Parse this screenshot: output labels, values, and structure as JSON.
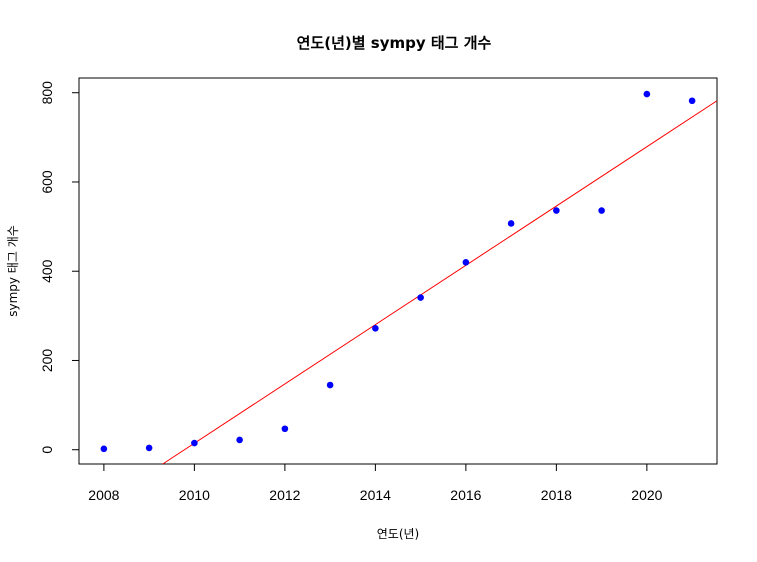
{
  "chart_data": {
    "type": "scatter",
    "title": "연도(년)별 sympy 태그 개수",
    "xlabel": "연도(년)",
    "ylabel": "sympy 태그 개수",
    "xlim": [
      2007.45,
      2021.55
    ],
    "ylim": [
      -32,
      833
    ],
    "x_ticks": [
      2008,
      2010,
      2012,
      2014,
      2016,
      2018,
      2020
    ],
    "y_ticks": [
      0,
      200,
      400,
      600,
      800
    ],
    "grid": false,
    "legend": "none",
    "series": [
      {
        "marker_color": "#0000ff",
        "x": [
          2008,
          2009,
          2010,
          2011,
          2012,
          2013,
          2014,
          2015,
          2016,
          2017,
          2018,
          2019,
          2020,
          2021
        ],
        "y": [
          2,
          4,
          15,
          22,
          47,
          145,
          272,
          341,
          420,
          507,
          536,
          536,
          797,
          782
        ]
      }
    ],
    "trendline": {
      "color": "#ff0000",
      "x": [
        2009.3,
        2021.55
      ],
      "y": [
        -32,
        782
      ]
    }
  }
}
